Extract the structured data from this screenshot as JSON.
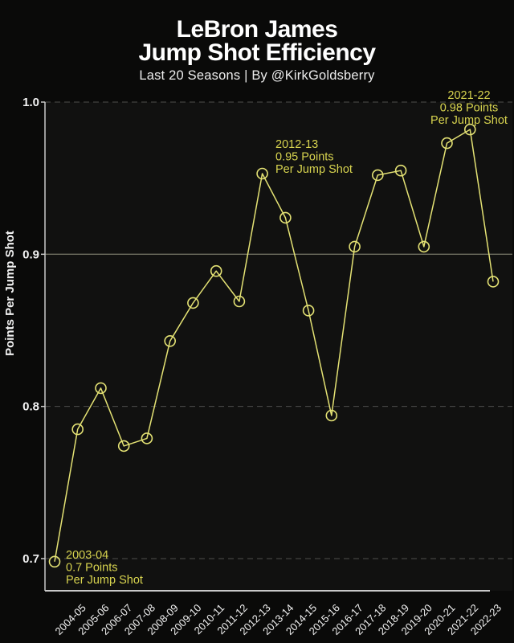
{
  "header": {
    "title_line1": "LeBron James",
    "title_line2": "Jump Shot Efficiency",
    "subtitle": "Last 20 Seasons | By @KirkGoldsberry"
  },
  "chart_data": {
    "type": "line",
    "title": "LeBron James Jump Shot Efficiency",
    "subtitle": "Last 20 Seasons | By @KirkGoldsberry",
    "xlabel": "",
    "ylabel": "Points Per Jump Shot",
    "ylim": [
      0.7,
      1.0
    ],
    "yticks": [
      1.0,
      0.9,
      0.8,
      0.7
    ],
    "ytick_labels": [
      "1.0",
      "0.9",
      "0.8",
      "0.7"
    ],
    "grid": {
      "dashed_at": [
        1.0,
        0.8,
        0.7
      ],
      "solid_at": [
        0.9
      ],
      "orientation": "horizontal-only"
    },
    "legend": {
      "shown": false
    },
    "categories": [
      "2003-04",
      "2004-05",
      "2005-06",
      "2006-07",
      "2007-08",
      "2008-09",
      "2009-10",
      "2010-11",
      "2011-12",
      "2012-13",
      "2013-14",
      "2014-15",
      "2015-16",
      "2016-17",
      "2017-18",
      "2018-19",
      "2019-20",
      "2020-21",
      "2021-22",
      "2022-23"
    ],
    "x_tick_labels_shown": [
      "2004-05",
      "2005-06",
      "2006-07",
      "2007-08",
      "2008-09",
      "2009-10",
      "2010-11",
      "2011-12",
      "2012-13",
      "2013-14",
      "2014-15",
      "2015-16",
      "2016-17",
      "2017-18",
      "2018-19",
      "2019-20",
      "2020-21",
      "2021-22",
      "2022-23"
    ],
    "series": [
      {
        "name": "Points Per Jump Shot",
        "values": [
          0.698,
          0.785,
          0.812,
          0.774,
          0.779,
          0.843,
          0.868,
          0.889,
          0.869,
          0.953,
          0.924,
          0.863,
          0.794,
          0.905,
          0.952,
          0.955,
          0.905,
          0.973,
          0.982,
          0.882
        ]
      }
    ],
    "annotations": [
      {
        "season": "2003-04",
        "align": "left",
        "lines": [
          "2003-04",
          "0.7 Points",
          "Per Jump Shot"
        ]
      },
      {
        "season": "2012-13",
        "align": "left",
        "lines": [
          "2012-13",
          "0.95 Points",
          "Per Jump Shot"
        ]
      },
      {
        "season": "2021-22",
        "align": "center",
        "lines": [
          "2021-22",
          "0.98 Points",
          "Per Jump Shot"
        ]
      }
    ],
    "marker": "open-circle",
    "colors": {
      "page_background": "#0a0a09",
      "plot_background": "#111110",
      "line": "#e4e274",
      "marker": "#e4e274",
      "annotation_text": "#d8d44f",
      "grid_dashed": "#4e4e4c",
      "grid_solid": "#6f6f60",
      "axis_spine": "#c9c9c9",
      "tick_text": "#f2f2f2",
      "title_text": "#ffffff"
    }
  }
}
